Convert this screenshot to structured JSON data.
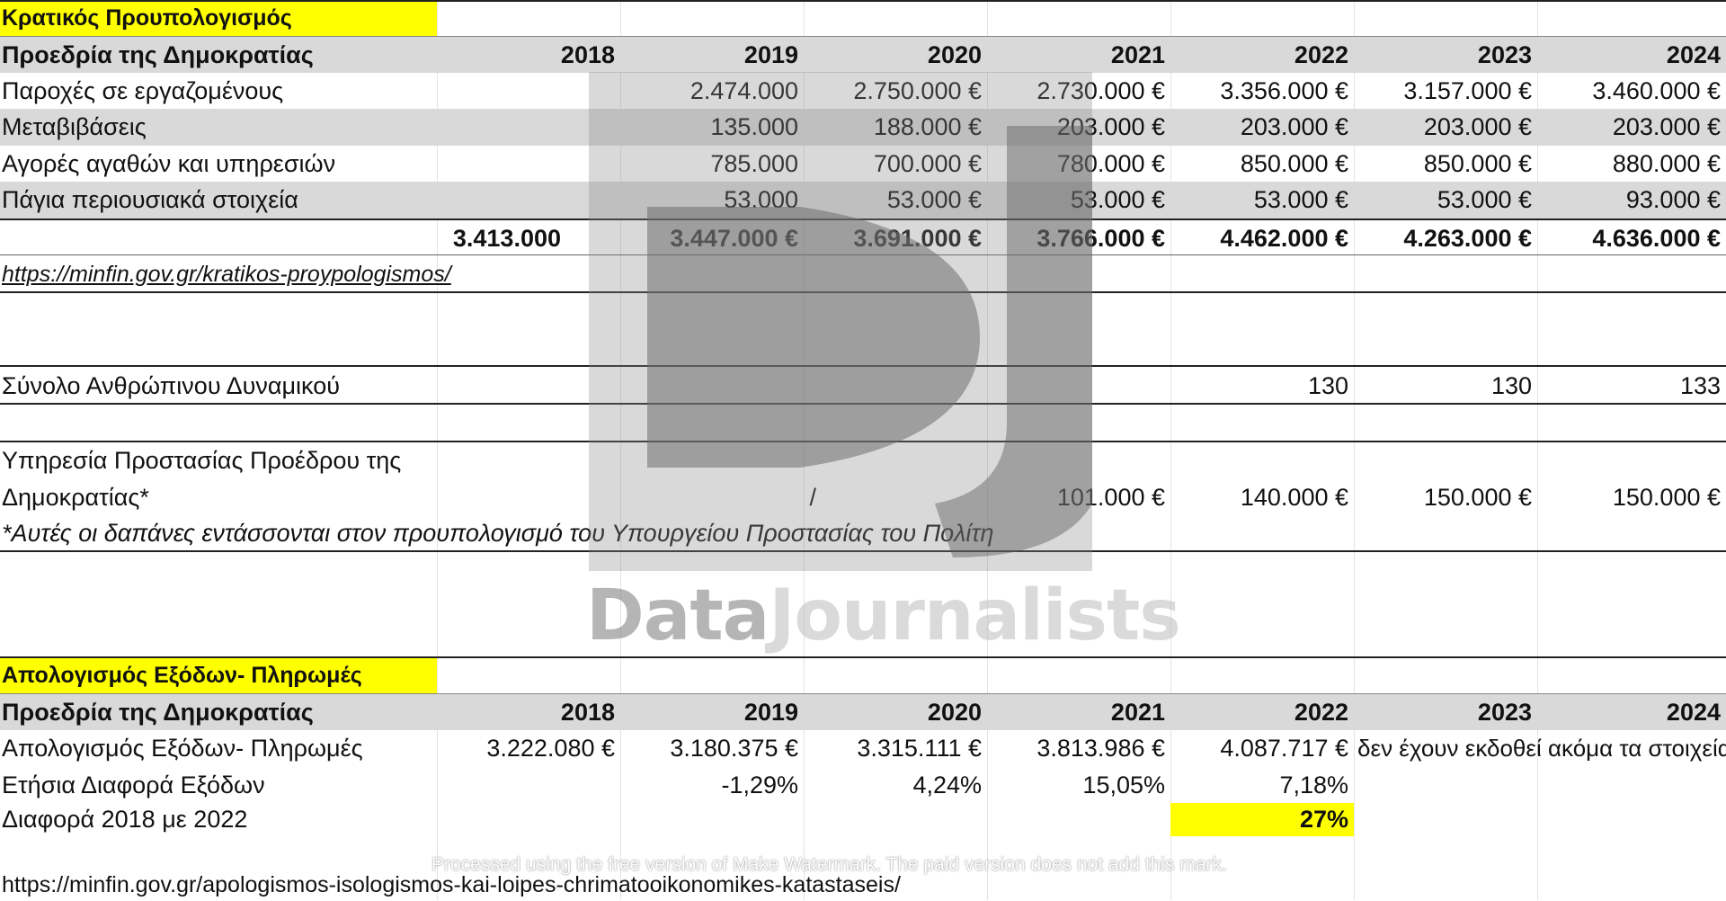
{
  "budget": {
    "title": "Κρατικός Προυπολογισμός",
    "header": {
      "label": "Προεδρία της Δημοκρατίας",
      "years": [
        "2018",
        "2019",
        "2020",
        "2021",
        "2022",
        "2023",
        "2024"
      ]
    },
    "rows": [
      {
        "label": "Παροχές σε εργαζομένους",
        "values": [
          "",
          "2.474.000",
          "2.750.000 €",
          "2.730.000 €",
          "3.356.000 €",
          "3.157.000 €",
          "3.460.000 €"
        ]
      },
      {
        "label": "Μεταβιβάσεις",
        "values": [
          "",
          "135.000",
          "188.000 €",
          "203.000 €",
          "203.000 €",
          "203.000 €",
          "203.000 €"
        ]
      },
      {
        "label": "Αγορές αγαθών και υπηρεσιών",
        "values": [
          "",
          "785.000",
          "700.000 €",
          "780.000 €",
          "850.000 €",
          "850.000 €",
          "880.000 €"
        ]
      },
      {
        "label": "Πάγια περιουσιακά στοιχεία",
        "values": [
          "",
          "53.000",
          "53.000 €",
          "53.000 €",
          "53.000 €",
          "53.000 €",
          "93.000 €"
        ]
      }
    ],
    "total": {
      "label": "",
      "values": [
        "3.413.000",
        "3.447.000 €",
        "3.691.000 €",
        "3.766.000 €",
        "4.462.000 €",
        "4.263.000 €",
        "4.636.000 €"
      ]
    },
    "source": "https://minfin.gov.gr/kratikos-proypologismos/"
  },
  "staff": {
    "label": "Σύνολο Ανθρώπινου Δυναμικού",
    "values": [
      "130",
      "130",
      "133"
    ]
  },
  "protection": {
    "label_line1": "Υπηρεσία Προστασίας Προέδρου της",
    "label_line2": "Δημοκρατίας*",
    "values": [
      "/",
      "101.000 €",
      "140.000 €",
      "150.000 €",
      "150.000 €"
    ],
    "footnote": "*Αυτές οι δαπάνες εντάσσονται στον προυπολογισμό του Υπουργείου Προστασίας του Πολίτη"
  },
  "accounts": {
    "title": "Απολογισμός Εξόδων- Πληρωμές",
    "header": {
      "label": "Προεδρία της Δημοκρατίας",
      "years": [
        "2018",
        "2019",
        "2020",
        "2021",
        "2022",
        "2023",
        "2024"
      ]
    },
    "payments": {
      "label": "Απολογισμός Εξόδων- Πληρωμές",
      "values": [
        "3.222.080 €",
        "3.180.375 €",
        "3.315.111 €",
        "3.813.986 €",
        "4.087.717 €"
      ],
      "note": "δεν έχουν εκδοθεί ακόμα τα στοιχεία"
    },
    "annual_diff": {
      "label": "Ετήσια Διαφορά Εξόδων",
      "values": [
        "-1,29%",
        "4,24%",
        "15,05%",
        "7,18%"
      ]
    },
    "diff_2018_2022": {
      "label": "Διαφορά 2018 με 2022",
      "value": "27%"
    },
    "source": "https://minfin.gov.gr/apologismos-isologismos-kai-loipes-chrimatooikonomikes-katastaseis/"
  },
  "watermark": {
    "brand_part1": "Data",
    "brand_part2": "Journalists",
    "notice": "Processed using the free version of Make Watermark. The paid version does not add this mark."
  },
  "colors": {
    "highlight": "#ffff00",
    "header_band": "#d9d9d9"
  }
}
